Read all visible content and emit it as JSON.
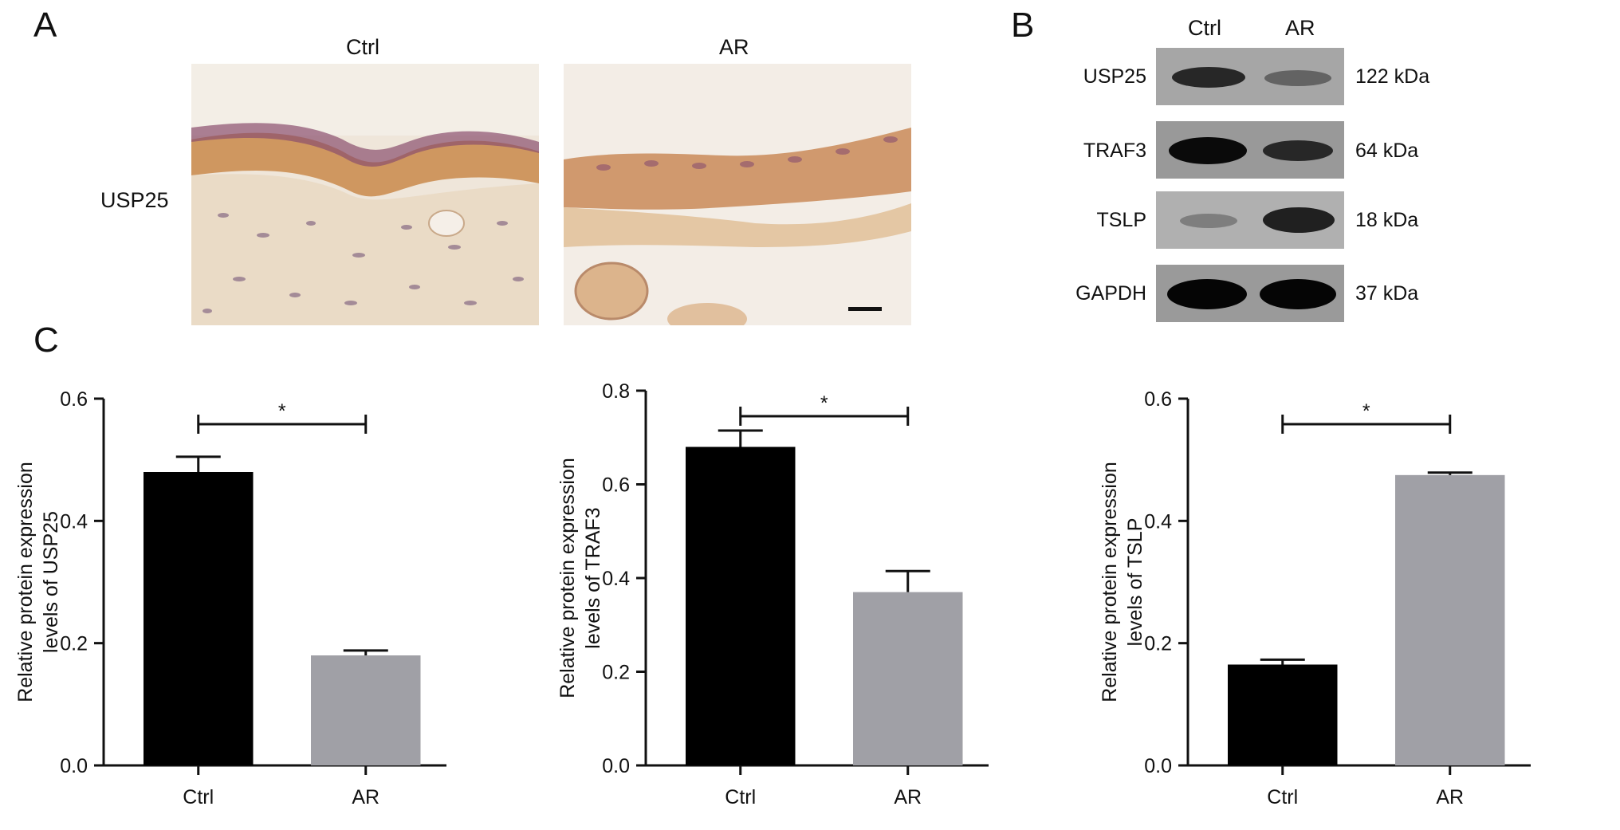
{
  "panels": {
    "a": "A",
    "b": "B",
    "c": "C"
  },
  "ihc": {
    "row_label": "USP25",
    "groups": [
      "Ctrl",
      "AR"
    ]
  },
  "western": {
    "groups": [
      "Ctrl",
      "AR"
    ],
    "bands": [
      {
        "protein": "USP25",
        "kda": "122 kDa",
        "intensity": [
          0.85,
          0.45
        ]
      },
      {
        "protein": "TRAF3",
        "kda": "64 kDa",
        "intensity": [
          1.0,
          0.8
        ]
      },
      {
        "protein": "TSLP",
        "kda": "18 kDa",
        "intensity": [
          0.35,
          0.9
        ]
      },
      {
        "protein": "GAPDH",
        "kda": "37 kDa",
        "intensity": [
          1.0,
          1.0
        ]
      }
    ]
  },
  "colors": {
    "ctrl": "#000000",
    "ar": "#a0a0a6"
  },
  "chart_data": [
    {
      "type": "bar",
      "categories": [
        "Ctrl",
        "AR"
      ],
      "values": [
        0.48,
        0.18
      ],
      "errors": [
        0.025,
        0.008
      ],
      "ylabel_lines": [
        "Relative protein expression",
        "levels of USP25"
      ],
      "ylim": [
        0,
        0.6
      ],
      "yticks": [
        "0.0",
        "0.2",
        "0.4",
        "0.6"
      ],
      "significance": "*"
    },
    {
      "type": "bar",
      "categories": [
        "Ctrl",
        "AR"
      ],
      "values": [
        0.68,
        0.37
      ],
      "errors": [
        0.035,
        0.045
      ],
      "ylabel_lines": [
        "Relative protein expression",
        "levels of TRAF3"
      ],
      "ylim": [
        0,
        0.8
      ],
      "yticks": [
        "0.0",
        "0.2",
        "0.4",
        "0.6",
        "0.8"
      ],
      "significance": "*"
    },
    {
      "type": "bar",
      "categories": [
        "Ctrl",
        "AR"
      ],
      "values": [
        0.165,
        0.475
      ],
      "errors": [
        0.008,
        0.004
      ],
      "ylabel_lines": [
        "Relative protein expression",
        "levels of TSLP"
      ],
      "ylim": [
        0,
        0.6
      ],
      "yticks": [
        "0.0",
        "0.2",
        "0.4",
        "0.6"
      ],
      "significance": "*"
    }
  ]
}
